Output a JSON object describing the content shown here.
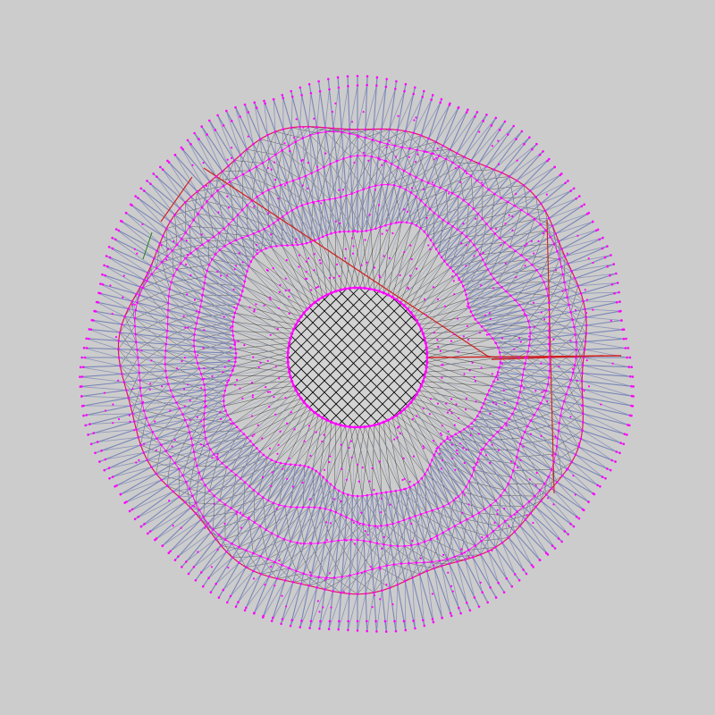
{
  "diagram": {
    "kind": "radial-mesh-graph",
    "colors": {
      "background": "#cccccc",
      "spoke": "#7a86b8",
      "node": "#ff00ff",
      "mesh": "#000000",
      "ring_edge": "#e0005a",
      "long_edge": "#d02020",
      "accent_green": "#208020",
      "core_fill": "#d3d3d3"
    },
    "ring_count": 7,
    "spokes_per_ring": 180
  }
}
